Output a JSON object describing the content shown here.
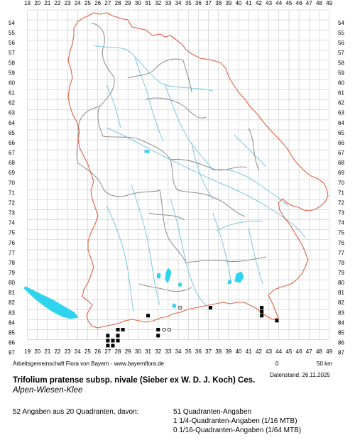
{
  "map": {
    "x_axis": [
      "19",
      "20",
      "21",
      "22",
      "23",
      "24",
      "25",
      "26",
      "27",
      "28",
      "29",
      "30",
      "31",
      "32",
      "33",
      "34",
      "35",
      "36",
      "37",
      "38",
      "39",
      "40",
      "41",
      "42",
      "43",
      "44",
      "45",
      "46",
      "47",
      "48",
      "49"
    ],
    "y_axis": [
      "54",
      "55",
      "56",
      "57",
      "58",
      "59",
      "60",
      "61",
      "62",
      "63",
      "64",
      "65",
      "66",
      "67",
      "68",
      "69",
      "70",
      "71",
      "72",
      "73",
      "74",
      "75",
      "76",
      "77",
      "78",
      "79",
      "80",
      "81",
      "82",
      "83",
      "84",
      "85",
      "86",
      "87"
    ],
    "records_filled": [
      [
        27.0,
        85.6
      ],
      [
        27.0,
        86.1
      ],
      [
        27.0,
        86.6
      ],
      [
        27.5,
        86.1
      ],
      [
        27.5,
        86.6
      ],
      [
        28.0,
        85.0
      ],
      [
        28.0,
        85.6
      ],
      [
        28.0,
        86.1
      ],
      [
        28.5,
        85.0
      ],
      [
        31.0,
        83.6
      ],
      [
        32.0,
        85.0
      ],
      [
        32.0,
        85.6
      ],
      [
        37.2,
        82.8
      ],
      [
        42.3,
        82.8
      ],
      [
        42.3,
        83.2
      ],
      [
        42.3,
        83.6
      ],
      [
        43.8,
        84.1
      ]
    ],
    "records_open": [
      [
        32.6,
        85.0
      ],
      [
        33.1,
        85.0
      ],
      [
        34.2,
        82.8
      ]
    ],
    "colors": {
      "state_border": "#e06040",
      "district_border": "#8c8c8c",
      "rivers": "#7ec8e3",
      "lakes": "#2ed4ee",
      "record_marker": "#000000",
      "grid": "#bdbdbd"
    }
  },
  "footer": {
    "credit": "Arbeitsgemeinschaft Flora von Bayern - www.bayernflora.de",
    "scale_start": "0",
    "scale_end": "50 km",
    "date": "Datenstand: 26.11.2025"
  },
  "species": {
    "name": "Trifolium pratense subsp. nivale (Sieber ex W. D. J. Koch) Ces.",
    "common_name": "Alpen-Wiesen-Klee"
  },
  "stats": {
    "summary": "52 Angaben aus 20 Quadranten, davon:",
    "line1": "51 Quadranten-Angaben",
    "line2": "1 1/4-Quadranten-Angaben (1/16 MTB)",
    "line3": "0 1/16-Quadranten-Angaben (1/64 MTB)"
  }
}
